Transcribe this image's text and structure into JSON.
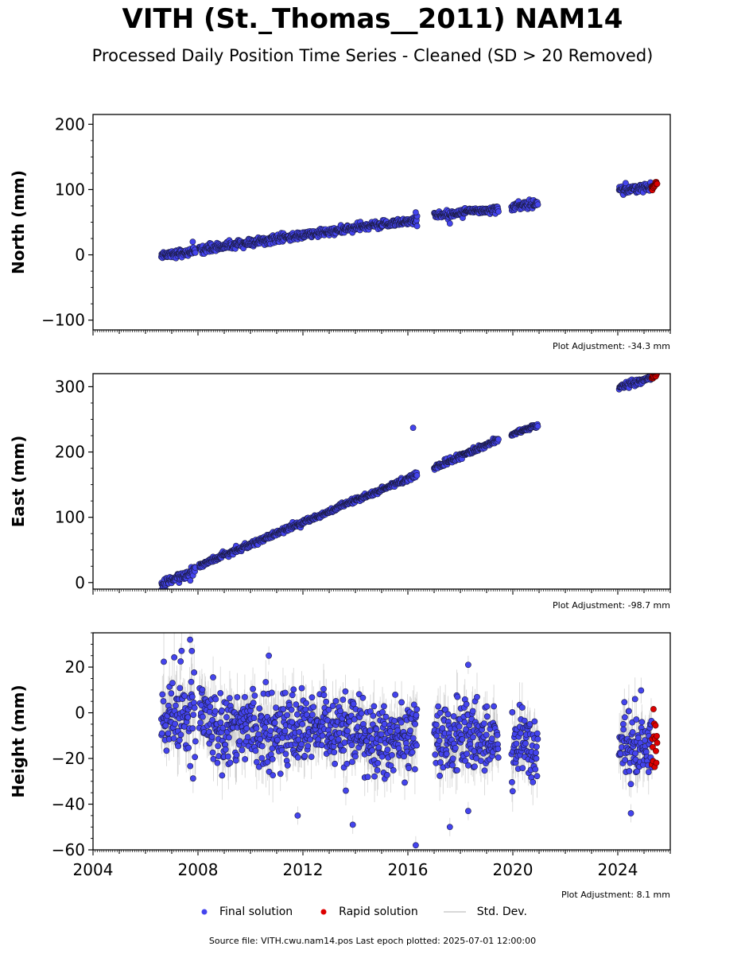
{
  "title": "VITH (St._Thomas__2011) NAM14",
  "subtitle": "Processed Daily Position Time Series - Cleaned (SD > 20 Removed)",
  "legend": {
    "final_label": "Final solution",
    "rapid_label": "Rapid solution",
    "std_label": "Std. Dev."
  },
  "source_text": "Source file: VITH.cwu.nam14.pos  Last epoch plotted: 2025-07-01 12:00:00",
  "colors": {
    "final": "#4444ee",
    "rapid": "#dd0000",
    "std_dev": "#b0b0b0",
    "marker_edge": "#1a1a40"
  },
  "chart_data": [
    {
      "type": "scatter",
      "component": "north",
      "ylabel": "North (mm)",
      "ylim": [
        -115,
        215
      ],
      "yticks": [
        -100,
        0,
        100,
        200
      ],
      "ytick_labels": [
        "−100",
        "0",
        "100",
        "200"
      ],
      "xlim": [
        2004.0,
        2026.0
      ],
      "show_xtick_labels": false,
      "adjustment": "Plot Adjustment: -34.3 mm",
      "segments": [
        {
          "start": 2006.6,
          "end": 2007.9,
          "y0": 0,
          "y1": 5,
          "noise": 3
        },
        {
          "start": 2008.05,
          "end": 2016.35,
          "y0": 8,
          "y1": 54,
          "noise": 3
        },
        {
          "start": 2017.0,
          "end": 2019.45,
          "y0": 60,
          "y1": 71,
          "noise": 3
        },
        {
          "start": 2019.95,
          "end": 2020.95,
          "y0": 73,
          "y1": 80,
          "noise": 3
        },
        {
          "start": 2024.05,
          "end": 2025.3,
          "y0": 99,
          "y1": 104,
          "noise": 3
        }
      ],
      "rapid_solution": {
        "start": 2025.3,
        "end": 2025.5,
        "y0": 105,
        "y1": 109,
        "noise": 2
      },
      "outliers": [
        {
          "x": 2007.8,
          "y": 20
        },
        {
          "x": 2016.3,
          "y": 65
        },
        {
          "x": 2016.35,
          "y": 44
        },
        {
          "x": 2017.6,
          "y": 48
        },
        {
          "x": 2024.3,
          "y": 110
        }
      ]
    },
    {
      "type": "scatter",
      "component": "east",
      "ylabel": "East (mm)",
      "ylim": [
        -10,
        320
      ],
      "yticks": [
        0,
        100,
        200,
        300
      ],
      "ytick_labels": [
        "0",
        "100",
        "200",
        "300"
      ],
      "xlim": [
        2004.0,
        2026.0
      ],
      "show_xtick_labels": false,
      "adjustment": "Plot Adjustment: -98.7 mm",
      "segments": [
        {
          "start": 2006.6,
          "end": 2007.9,
          "y0": -5,
          "y1": 20,
          "noise": 4
        },
        {
          "start": 2008.05,
          "end": 2016.35,
          "y0": 26,
          "y1": 165,
          "noise": 2
        },
        {
          "start": 2017.0,
          "end": 2019.45,
          "y0": 176,
          "y1": 219,
          "noise": 2
        },
        {
          "start": 2019.95,
          "end": 2020.95,
          "y0": 227,
          "y1": 241,
          "noise": 2
        },
        {
          "start": 2024.05,
          "end": 2025.3,
          "y0": 299,
          "y1": 314,
          "noise": 2
        }
      ],
      "rapid_solution": {
        "start": 2025.3,
        "end": 2025.5,
        "y0": 315,
        "y1": 319,
        "noise": 2
      },
      "outliers": [
        {
          "x": 2016.2,
          "y": 237
        }
      ]
    },
    {
      "type": "scatter",
      "component": "height",
      "ylabel": "Height (mm)",
      "ylim": [
        -60,
        35
      ],
      "yticks": [
        -60,
        -40,
        -20,
        0,
        20
      ],
      "ytick_labels": [
        "−60",
        "−40",
        "−20",
        "0",
        "20"
      ],
      "xlim": [
        2004.0,
        2026.0
      ],
      "show_xtick_labels": true,
      "xticks": [
        2004,
        2008,
        2012,
        2016,
        2020,
        2024
      ],
      "xtick_labels": [
        "2004",
        "2008",
        "2012",
        "2016",
        "2020",
        "2024"
      ],
      "adjustment": "Plot Adjustment: 8.1 mm",
      "segments": [
        {
          "start": 2006.6,
          "end": 2007.9,
          "y0": -2,
          "y1": -2,
          "noise": 10
        },
        {
          "start": 2008.05,
          "end": 2016.35,
          "y0": -4,
          "y1": -12,
          "noise": 8
        },
        {
          "start": 2017.0,
          "end": 2019.45,
          "y0": -10,
          "y1": -12,
          "noise": 8
        },
        {
          "start": 2019.95,
          "end": 2020.95,
          "y0": -12,
          "y1": -14,
          "noise": 8
        },
        {
          "start": 2024.05,
          "end": 2025.3,
          "y0": -14,
          "y1": -11,
          "noise": 8
        }
      ],
      "rapid_solution": {
        "start": 2025.3,
        "end": 2025.5,
        "y0": -13,
        "y1": -14,
        "noise": 5
      },
      "outliers": [
        {
          "x": 2007.7,
          "y": 32
        },
        {
          "x": 2010.7,
          "y": 25
        },
        {
          "x": 2018.3,
          "y": 21
        },
        {
          "x": 2016.3,
          "y": -58
        },
        {
          "x": 2017.6,
          "y": -50
        },
        {
          "x": 2013.9,
          "y": -49
        },
        {
          "x": 2011.8,
          "y": -45
        },
        {
          "x": 2024.5,
          "y": -44
        },
        {
          "x": 2018.3,
          "y": -43
        }
      ]
    }
  ]
}
